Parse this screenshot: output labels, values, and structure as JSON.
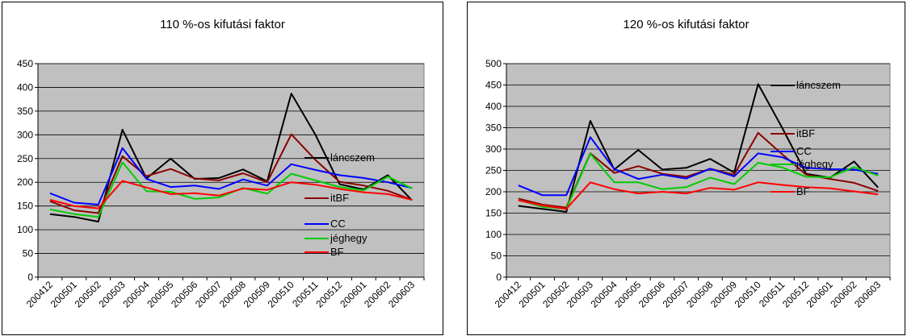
{
  "chart_data": [
    {
      "type": "line",
      "title": "110 %-os kifutási faktor",
      "xlabel": "",
      "ylabel": "",
      "ylim": [
        0,
        450
      ],
      "ytick_step": 50,
      "grid": true,
      "plot_background": "#c0c0c0",
      "legend_placement": "inline labels at right of plot",
      "categories": [
        "200412",
        "200501",
        "200502",
        "200503",
        "200504",
        "200505",
        "200506",
        "200507",
        "200508",
        "200509",
        "200510",
        "200511",
        "200512",
        "200601",
        "200602",
        "200603"
      ],
      "series": [
        {
          "name": "láncszem",
          "color": "#000000",
          "values": [
            133,
            127,
            117,
            311,
            208,
            250,
            207,
            209,
            227,
            202,
            387,
            300,
            196,
            185,
            215,
            162
          ]
        },
        {
          "name": "itBF",
          "color": "#8b0000",
          "values": [
            160,
            141,
            135,
            255,
            213,
            228,
            208,
            204,
            219,
            200,
            301,
            247,
            201,
            193,
            182,
            163
          ]
        },
        {
          "name": "CC",
          "color": "#0000ff",
          "values": [
            177,
            157,
            153,
            272,
            207,
            190,
            193,
            186,
            206,
            193,
            238,
            226,
            215,
            209,
            200,
            188
          ]
        },
        {
          "name": "jéghegy",
          "color": "#00cc00",
          "values": [
            143,
            133,
            127,
            242,
            181,
            180,
            165,
            168,
            188,
            176,
            218,
            204,
            190,
            183,
            212,
            187
          ]
        },
        {
          "name": "BF",
          "color": "#ff0000",
          "values": [
            163,
            150,
            145,
            203,
            189,
            175,
            177,
            172,
            187,
            184,
            200,
            195,
            186,
            179,
            175,
            163
          ]
        }
      ]
    },
    {
      "type": "line",
      "title": "120 %-os kifutási faktor",
      "xlabel": "",
      "ylabel": "",
      "ylim": [
        0,
        500
      ],
      "ytick_step": 50,
      "grid": true,
      "plot_background": "#c0c0c0",
      "legend_placement": "inline labels at right of plot",
      "categories": [
        "200412",
        "200501",
        "200502",
        "200503",
        "200504",
        "200505",
        "200506",
        "200507",
        "200508",
        "200509",
        "200510",
        "200511",
        "200512",
        "200601",
        "200602",
        "200603"
      ],
      "series": [
        {
          "name": "láncszem",
          "color": "#000000",
          "values": [
            167,
            160,
            153,
            366,
            252,
            298,
            252,
            256,
            277,
            245,
            452,
            350,
            242,
            233,
            271,
            210
          ]
        },
        {
          "name": "itBF",
          "color": "#8b0000",
          "values": [
            184,
            170,
            163,
            290,
            244,
            260,
            242,
            235,
            254,
            240,
            338,
            288,
            240,
            230,
            221,
            202
          ]
        },
        {
          "name": "CC",
          "color": "#0000ff",
          "values": [
            215,
            192,
            192,
            328,
            253,
            230,
            240,
            231,
            254,
            236,
            290,
            281,
            256,
            253,
            252,
            242
          ]
        },
        {
          "name": "jéghegy",
          "color": "#00cc00",
          "values": [
            181,
            165,
            160,
            289,
            222,
            222,
            206,
            211,
            233,
            218,
            268,
            257,
            235,
            234,
            258,
            238
          ]
        },
        {
          "name": "BF",
          "color": "#ff0000",
          "values": [
            180,
            168,
            160,
            222,
            206,
            196,
            200,
            196,
            209,
            205,
            222,
            216,
            211,
            208,
            201,
            194
          ]
        }
      ]
    }
  ]
}
